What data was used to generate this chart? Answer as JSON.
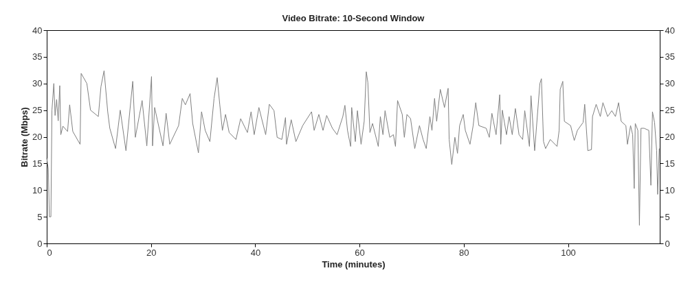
{
  "chart_data": {
    "type": "line",
    "title": "Video Bitrate: 10-Second Window",
    "xlabel": "Time (minutes)",
    "ylabel": "Bitrate (Mbps)",
    "xlim": [
      0,
      117.6
    ],
    "xticks": [
      0,
      20,
      40,
      60,
      80,
      100
    ],
    "ylim": [
      0,
      40
    ],
    "yticks": [
      0,
      5,
      10,
      15,
      20,
      25,
      30,
      35,
      40
    ],
    "y2lim": [
      0,
      40
    ],
    "y2ticks": [
      0,
      5,
      10,
      15,
      20,
      25,
      30,
      35,
      40
    ],
    "grid": false,
    "marker": "none",
    "line_style": "solid",
    "series": [
      {
        "color": "#808080",
        "x": [
          0,
          0.3,
          0.5,
          0.8,
          1.0,
          1.36,
          1.6,
          1.9,
          2.2,
          2.5,
          2.7,
          3.1,
          4.0,
          4.4,
          5.0,
          6.4,
          6.6,
          7.7,
          8.4,
          9.9,
          10.4,
          11.0,
          11.7,
          12.1,
          13.2,
          14.1,
          15.2,
          16.5,
          17.0,
          18.3,
          19.2,
          20.1,
          20.3,
          20.7,
          22.3,
          22.9,
          23.6,
          25.3,
          26.0,
          26.6,
          27.5,
          28.0,
          29.1,
          29.7,
          30.4,
          31.3,
          32.1,
          32.7,
          33.2,
          33.7,
          34.3,
          35.0,
          36.3,
          37.2,
          38.5,
          39.2,
          39.8,
          40.7,
          42.0,
          42.7,
          43.6,
          44.2,
          45.1,
          45.8,
          46.0,
          46.9,
          47.8,
          49.1,
          50.8,
          51.3,
          52.2,
          53.0,
          53.7,
          54.8,
          55.7,
          56.8,
          57.2,
          57.7,
          58.3,
          58.5,
          59.2,
          59.6,
          60.3,
          60.9,
          61.3,
          61.6,
          62.0,
          62.5,
          63.6,
          64.0,
          64.5,
          64.9,
          65.8,
          66.5,
          66.9,
          67.3,
          68.2,
          68.6,
          69.1,
          69.8,
          70.6,
          71.5,
          72.2,
          72.8,
          73.5,
          73.9,
          74.4,
          74.8,
          75.5,
          76.3,
          77.0,
          77.2,
          77.7,
          78.3,
          78.8,
          79.2,
          79.9,
          80.3,
          81.2,
          81.8,
          82.3,
          82.9,
          84.3,
          84.9,
          85.4,
          86.2,
          86.9,
          87.1,
          87.4,
          88.2,
          88.7,
          89.3,
          89.9,
          90.6,
          91.3,
          91.7,
          92.6,
          92.9,
          93.6,
          94.6,
          94.9,
          95.3,
          95.7,
          96.6,
          97.9,
          98.3,
          98.5,
          99.0,
          99.3,
          100.5,
          101.2,
          101.8,
          102.9,
          103.2,
          103.8,
          104.5,
          104.7,
          105.4,
          106.2,
          106.7,
          107.6,
          108.4,
          109.1,
          109.7,
          110.2,
          111.1,
          111.4,
          112.0,
          112.4,
          112.7,
          112.9,
          113.4,
          113.7,
          114.0,
          114.6,
          115.5,
          115.9,
          116.2,
          116.6,
          117.0,
          117.2,
          117.5
        ],
        "values": [
          16,
          14,
          5,
          5,
          25,
          30,
          24,
          27,
          23,
          29.6,
          20.4,
          22,
          21,
          26,
          21,
          18.6,
          31.9,
          30,
          25,
          23.8,
          29.4,
          32.4,
          24.7,
          21.6,
          17.8,
          25,
          17.4,
          30.4,
          19.9,
          26.8,
          18.3,
          31.3,
          18.3,
          25.5,
          18.3,
          24.4,
          18.6,
          22.1,
          27.2,
          26,
          28.1,
          22.5,
          17,
          24.7,
          21.2,
          19.1,
          27.2,
          31.1,
          26,
          21.2,
          24.2,
          20.8,
          19.5,
          23.4,
          20.8,
          24.7,
          20.4,
          25.5,
          20.4,
          26.1,
          24.9,
          19.9,
          19.5,
          23.6,
          18.6,
          23.2,
          19.1,
          22.1,
          24.7,
          21.2,
          24.2,
          21.2,
          24,
          21.6,
          20.4,
          23.8,
          25.9,
          21.2,
          18.2,
          25.5,
          19.1,
          24.9,
          18.6,
          22.9,
          32.2,
          30.2,
          20.8,
          22.5,
          18.2,
          23.8,
          20.4,
          24.9,
          19.9,
          20.4,
          18.2,
          26.8,
          24.2,
          19.9,
          24.2,
          23.4,
          17.8,
          22.1,
          19.5,
          17.8,
          23.8,
          21.2,
          27.2,
          22.9,
          28.9,
          25.5,
          29.1,
          19.5,
          14.8,
          19.9,
          16.9,
          22.1,
          24.2,
          21.2,
          18.6,
          22.1,
          26.4,
          22.1,
          21.6,
          19.9,
          24.4,
          20.4,
          27.9,
          18.6,
          25,
          20.4,
          23.8,
          20.4,
          25.3,
          20.4,
          19.5,
          24.9,
          18.2,
          27.7,
          17.4,
          30,
          30.9,
          19.1,
          17.8,
          19.5,
          18.2,
          21.2,
          28.9,
          30.4,
          22.9,
          22.1,
          19.3,
          21.2,
          22.7,
          26.1,
          17.4,
          17.6,
          23.8,
          26.1,
          23.8,
          26.4,
          23.8,
          24.9,
          23.8,
          26.4,
          22.9,
          22.1,
          18.6,
          22.1,
          20.4,
          10.3,
          22.5,
          21.2,
          3.4,
          21.6,
          21.6,
          21.2,
          10.9,
          24.7,
          22.7,
          17.4,
          9.2,
          17.8
        ]
      }
    ]
  }
}
